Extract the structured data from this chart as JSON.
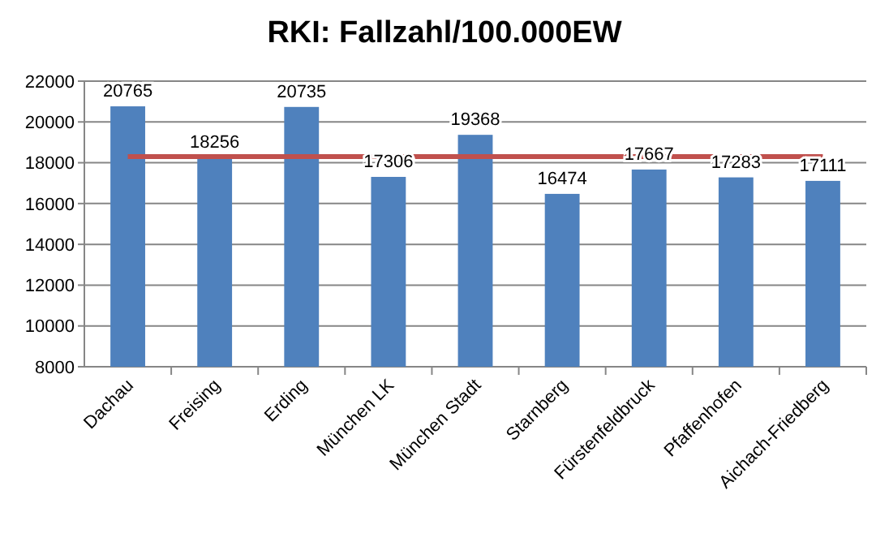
{
  "chart_data": {
    "type": "bar",
    "title": "RKI: Fallzahl/100.000EW",
    "categories": [
      "Dachau",
      "Freising",
      "Erding",
      "München LK",
      "München Stadt",
      "Starnberg",
      "Fürstenfeldbruck",
      "Pfaffenhofen",
      "Aichach-Friedberg"
    ],
    "series": [
      {
        "color": "#4f81bd",
        "values": [
          20765,
          18256,
          20735,
          17306,
          19368,
          16474,
          17667,
          17283,
          17111
        ],
        "value_labels": [
          "20765",
          "18256",
          "20735",
          "17306",
          "19368",
          "16474",
          "17667",
          "17283",
          "17111"
        ]
      },
      {
        "type": "line",
        "color": "#c0504d",
        "values": [
          18300,
          18300,
          18300,
          18300,
          18300,
          18300,
          18300,
          18300,
          18300
        ]
      }
    ],
    "ylim": [
      8000,
      22000
    ],
    "yticks": [
      8000,
      10000,
      12000,
      14000,
      16000,
      18000,
      20000,
      22000
    ],
    "grid": "y",
    "marker": "none"
  }
}
